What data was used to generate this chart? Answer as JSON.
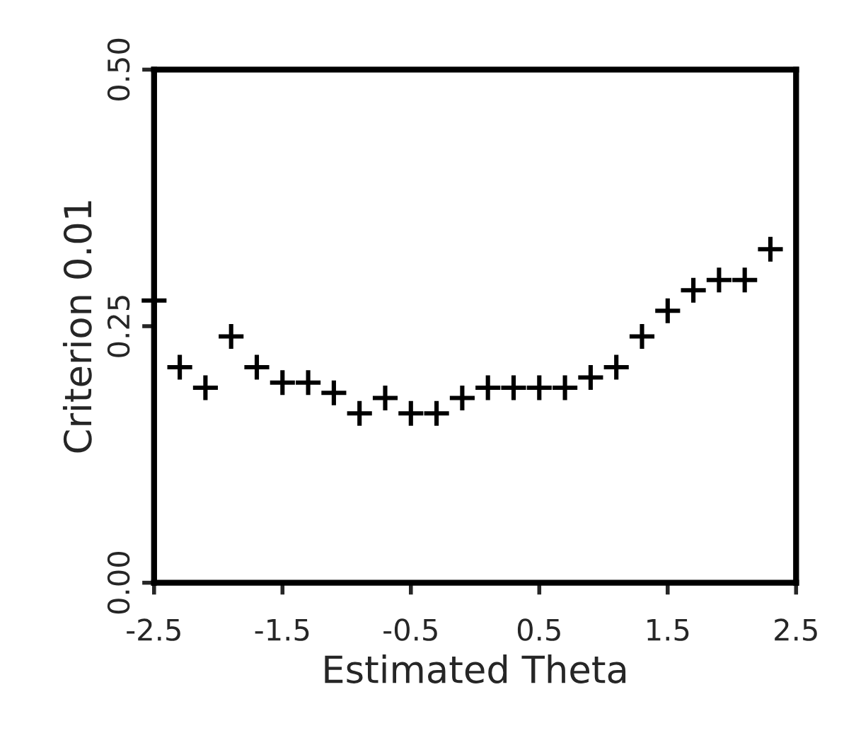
{
  "chart_data": {
    "type": "scatter",
    "xlabel": "Estimated Theta",
    "ylabel": "Criterion 0.01",
    "x": [
      -2.5,
      -2.3,
      -2.1,
      -1.9,
      -1.7,
      -1.5,
      -1.3,
      -1.1,
      -0.9,
      -0.7,
      -0.5,
      -0.3,
      -0.1,
      0.1,
      0.3,
      0.5,
      0.7,
      0.9,
      1.1,
      1.3,
      1.5,
      1.7,
      1.9,
      2.1,
      2.3
    ],
    "series": [
      {
        "color": "#000000",
        "values": [
          0.275,
          0.21,
          0.19,
          0.24,
          0.21,
          0.195,
          0.195,
          0.185,
          0.165,
          0.18,
          0.165,
          0.165,
          0.18,
          0.19,
          0.19,
          0.19,
          0.19,
          0.2,
          0.21,
          0.24,
          0.265,
          0.285,
          0.295,
          0.295,
          0.325
        ]
      }
    ],
    "xlim": [
      -2.5,
      2.5
    ],
    "ylim": [
      0,
      0.5
    ],
    "xticks": [
      {
        "value": -2.5,
        "label": "-2.5"
      },
      {
        "value": -1.5,
        "label": "-1.5"
      },
      {
        "value": -0.5,
        "label": "-0.5"
      },
      0.5,
      1.5,
      2.5
    ],
    "yticks": [
      {
        "value": 0,
        "label": "0.00"
      },
      {
        "value": 0.25,
        "label": "0.25"
      },
      {
        "value": 0.5,
        "label": "0.50"
      }
    ],
    "marker": "cross",
    "grid": false,
    "legend": false
  }
}
